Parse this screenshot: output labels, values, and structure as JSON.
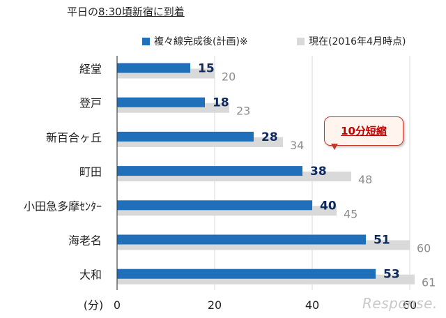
{
  "title": {
    "prefix": "平日の",
    "time": "8:30",
    "suffix": "頃新宿に到着"
  },
  "legend": {
    "planned": "複々線完成後(計画)※",
    "current": "現在(2016年4月時点)"
  },
  "callout": "10分短縮",
  "watermark": "Response.",
  "colors": {
    "planned_bar": "#1f6fbb",
    "current_bar": "#d9d9d9",
    "planned_label": "#0d2a5c",
    "current_label": "#8c8c8c",
    "callout_text": "#c00000"
  },
  "chart_data": {
    "type": "bar",
    "orientation": "horizontal",
    "categories": [
      "経堂",
      "登戸",
      "新百合ヶ丘",
      "町田",
      "小田急多摩ｾﾝﾀｰ",
      "海老名",
      "大和"
    ],
    "series": [
      {
        "name": "複々線完成後(計画)※",
        "values": [
          15,
          18,
          28,
          38,
          40,
          51,
          53
        ]
      },
      {
        "name": "現在(2016年4月時点)",
        "values": [
          20,
          23,
          34,
          48,
          45,
          60,
          61
        ]
      }
    ],
    "xaxis_unit_label": "(分)",
    "xticks": [
      0,
      20,
      40,
      60
    ],
    "xlim": [
      0,
      64
    ],
    "grid": true,
    "legend_position": "top"
  }
}
